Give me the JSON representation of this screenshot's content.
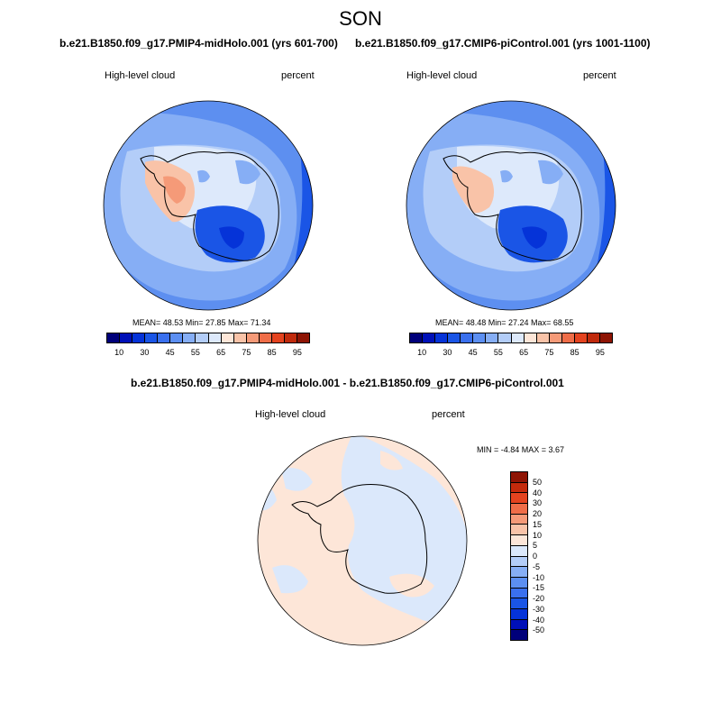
{
  "figure": {
    "season": "SON"
  },
  "panels": [
    {
      "title": "b.e21.B1850.f09_g17.PMIP4-midHolo.001 (yrs 601-700)",
      "left_label": "High-level cloud",
      "right_label": "percent",
      "stats": "MEAN=  48.53  Min=  27.85  Max=  71.34"
    },
    {
      "title": "b.e21.B1850.f09_g17.CMIP6-piControl.001 (yrs 1001-1100)",
      "left_label": "High-level cloud",
      "right_label": "percent",
      "stats": "MEAN=  48.48  Min=  27.24  Max=  68.55"
    },
    {
      "title": "b.e21.B1850.f09_g17.PMIP4-midHolo.001 - b.e21.B1850.f09_g17.CMIP6-piControl.001",
      "left_label": "High-level cloud",
      "right_label": "percent",
      "stats": "MIN =  -4.84 MAX =   3.67"
    }
  ],
  "colorbar_main": {
    "colors": [
      "#00007a",
      "#0010b8",
      "#0533d8",
      "#1a55e6",
      "#3a70ee",
      "#5c8ff2",
      "#86aef5",
      "#b3cdf8",
      "#dde9fb",
      "#fde6d8",
      "#f9c3a8",
      "#f59a78",
      "#ef6d48",
      "#e4431f",
      "#c02a0c",
      "#8e1404"
    ],
    "ticks": [
      "10",
      "30",
      "45",
      "55",
      "65",
      "75",
      "85",
      "95"
    ]
  },
  "colorbar_diff": {
    "colors": [
      "#8e1404",
      "#c42a0c",
      "#e4431f",
      "#ef6d48",
      "#f59a78",
      "#f9c3a8",
      "#fde6d8",
      "#dbe8fb",
      "#b3cdf8",
      "#86aef5",
      "#5c8ff2",
      "#3a70ee",
      "#1a55e6",
      "#0533d8",
      "#0010b8",
      "#00007a"
    ],
    "ticks": [
      "50",
      "40",
      "30",
      "20",
      "15",
      "10",
      "5",
      "0",
      "-5",
      "-10",
      "-15",
      "-20",
      "-30",
      "-40",
      "-50"
    ]
  },
  "colors": {
    "ocean_blue": "#5d8ff0",
    "deep_blue": "#1a4fe0",
    "light_blue": "#b3cdf8",
    "pale_blue": "#dde9fb",
    "light_red": "#f9c3a8",
    "diff_peach": "#fde6d8",
    "diff_pale_blue": "#dbe8fb"
  }
}
